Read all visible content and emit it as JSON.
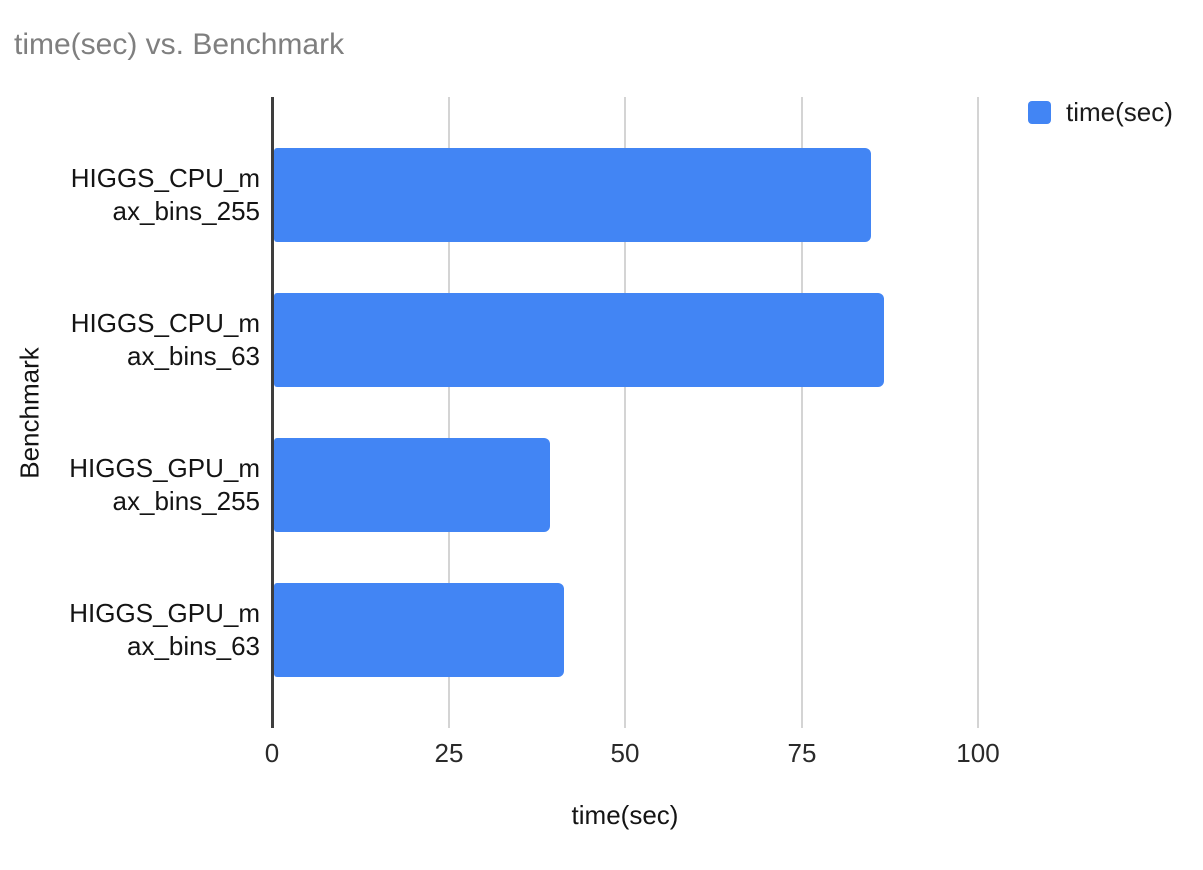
{
  "title": "time(sec) vs. Benchmark",
  "legend": {
    "position": "top-right",
    "items": [
      {
        "label": "time(sec)",
        "color": "#4285F4"
      }
    ]
  },
  "chart_data": {
    "type": "bar",
    "orientation": "horizontal",
    "title": "time(sec) vs. Benchmark",
    "xlabel": "time(sec)",
    "ylabel": "Benchmark",
    "categories": [
      "HIGGS_CPU_max_bins_255",
      "HIGGS_CPU_max_bins_63",
      "HIGGS_GPU_max_bins_255",
      "HIGGS_GPU_max_bins_63"
    ],
    "category_wrap": [
      [
        "HIGGS_CPU_m",
        "ax_bins_255"
      ],
      [
        "HIGGS_CPU_m",
        "ax_bins_63"
      ],
      [
        "HIGGS_GPU_m",
        "ax_bins_255"
      ],
      [
        "HIGGS_GPU_m",
        "ax_bins_63"
      ]
    ],
    "series": [
      {
        "name": "time(sec)",
        "color": "#4285F4",
        "values": [
          84.6,
          86.4,
          39.1,
          41.1
        ]
      }
    ],
    "x_ticks": [
      0,
      25,
      50,
      75,
      100
    ],
    "xlim": [
      0,
      100
    ],
    "grid": true,
    "legend_position": "top-right"
  },
  "style": {
    "bar_color": "#4285F4",
    "title_color": "#7f7f7f",
    "gridline_color": "#d4d4d4",
    "axis_line_color": "#3e3e3e",
    "label_color": "#141414",
    "background": "#ffffff"
  }
}
